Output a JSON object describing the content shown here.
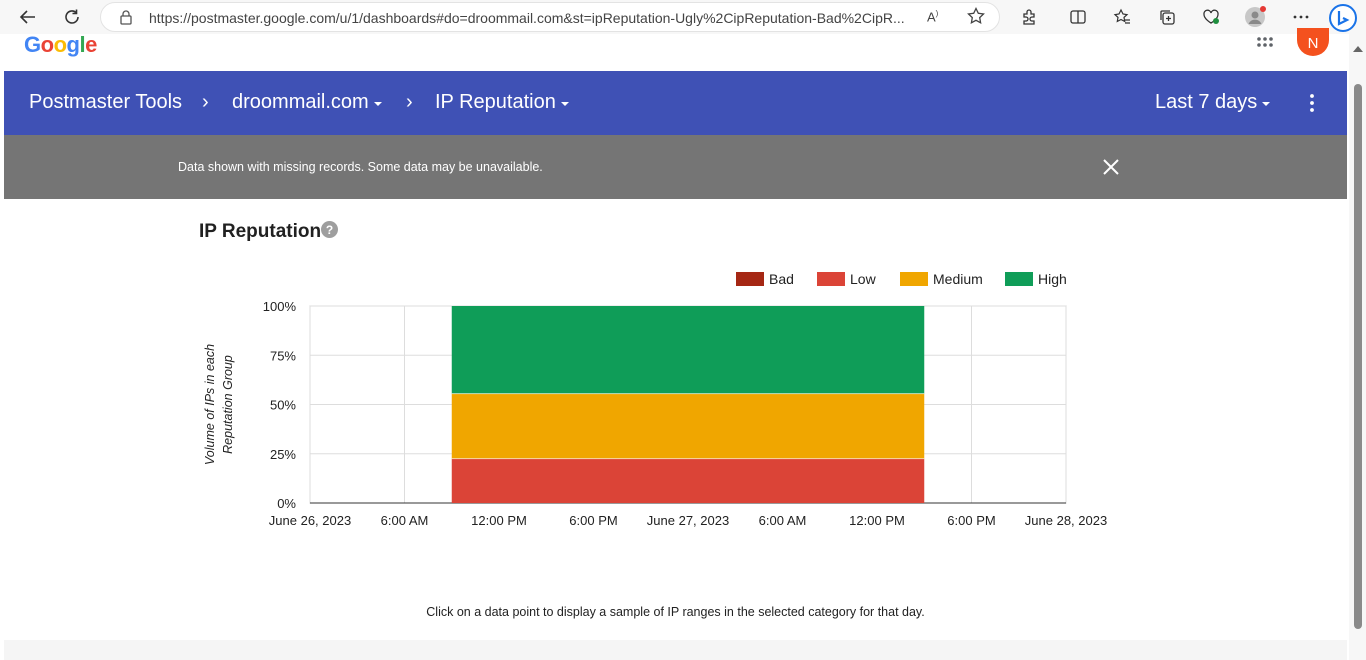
{
  "browser": {
    "url": "https://postmaster.google.com/u/1/dashboards#do=droommail.com&st=ipReputation-Ugly%2CipReputation-Bad%2CipR..."
  },
  "page": {
    "logo_text": "Google",
    "avatar_letter": "N"
  },
  "header": {
    "app_title": "Postmaster Tools",
    "domain": "droommail.com",
    "dashboard": "IP Reputation",
    "date_range": "Last 7 days"
  },
  "banner": {
    "message": "Data shown with missing records. Some data may be unavailable."
  },
  "section": {
    "title": "IP Reputation",
    "footnote": "Click on a data point to display a sample of IP ranges in the selected category for that day."
  },
  "colors": {
    "header_blue": "#3f51b5",
    "banner_gray": "#757575",
    "bad": "#a52714",
    "low": "#db4437",
    "medium": "#f0a600",
    "high": "#0f9d58"
  },
  "chart_data": {
    "type": "area",
    "stacked": true,
    "ylabel_lines": [
      "Volume of IPs in each",
      "Reputation Group"
    ],
    "yticks": [
      "0%",
      "25%",
      "50%",
      "75%",
      "100%"
    ],
    "ylim": [
      0,
      100
    ],
    "xticks": [
      "June 26, 2023",
      "6:00 AM",
      "12:00 PM",
      "6:00 PM",
      "June 27, 2023",
      "6:00 AM",
      "12:00 PM",
      "6:00 PM",
      "June 28, 2023"
    ],
    "xlim_hours": [
      0,
      48
    ],
    "legend_position": "top-right",
    "grid": true,
    "series": [
      {
        "name": "Bad",
        "color": "#a52714",
        "start_hour": 9,
        "end_hour": 39,
        "value": 0
      },
      {
        "name": "Low",
        "color": "#db4437",
        "start_hour": 9,
        "end_hour": 39,
        "value": 22.5
      },
      {
        "name": "Medium",
        "color": "#f0a600",
        "start_hour": 9,
        "end_hour": 39,
        "value": 33
      },
      {
        "name": "High",
        "color": "#0f9d58",
        "start_hour": 9,
        "end_hour": 39,
        "value": 44.5
      }
    ]
  }
}
